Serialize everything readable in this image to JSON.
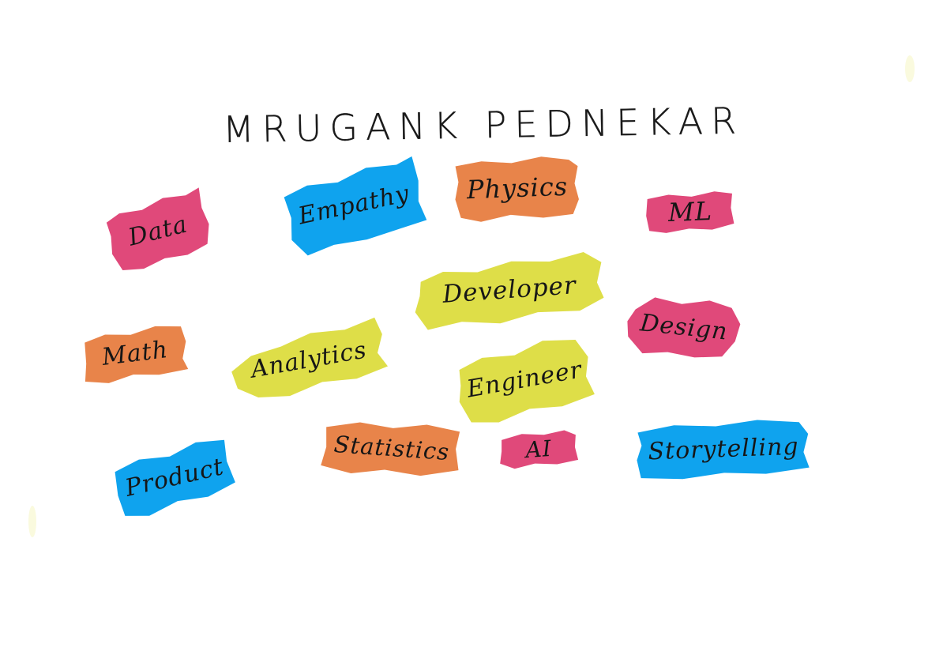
{
  "title": "MRUGANK PEDNEKAR",
  "colors": {
    "pink": "#E0497A",
    "blue": "#0FA3EE",
    "orange": "#E8844A",
    "yellow": "#DEDE48"
  },
  "tags": [
    {
      "id": "data",
      "label": "Data",
      "color": "#E0497A"
    },
    {
      "id": "empathy",
      "label": "Empathy",
      "color": "#0FA3EE"
    },
    {
      "id": "physics",
      "label": "Physics",
      "color": "#E8844A"
    },
    {
      "id": "ml",
      "label": "ML",
      "color": "#E0497A"
    },
    {
      "id": "developer",
      "label": "Developer",
      "color": "#DEDE48"
    },
    {
      "id": "design",
      "label": "Design",
      "color": "#E0497A"
    },
    {
      "id": "math",
      "label": "Math",
      "color": "#E8844A"
    },
    {
      "id": "analytics",
      "label": "Analytics",
      "color": "#DEDE48"
    },
    {
      "id": "engineer",
      "label": "Engineer",
      "color": "#DEDE48"
    },
    {
      "id": "product",
      "label": "Product",
      "color": "#0FA3EE"
    },
    {
      "id": "statistics",
      "label": "Statistics",
      "color": "#E8844A"
    },
    {
      "id": "ai",
      "label": "AI",
      "color": "#E0497A"
    },
    {
      "id": "storytelling",
      "label": "Storytelling",
      "color": "#0FA3EE"
    }
  ]
}
